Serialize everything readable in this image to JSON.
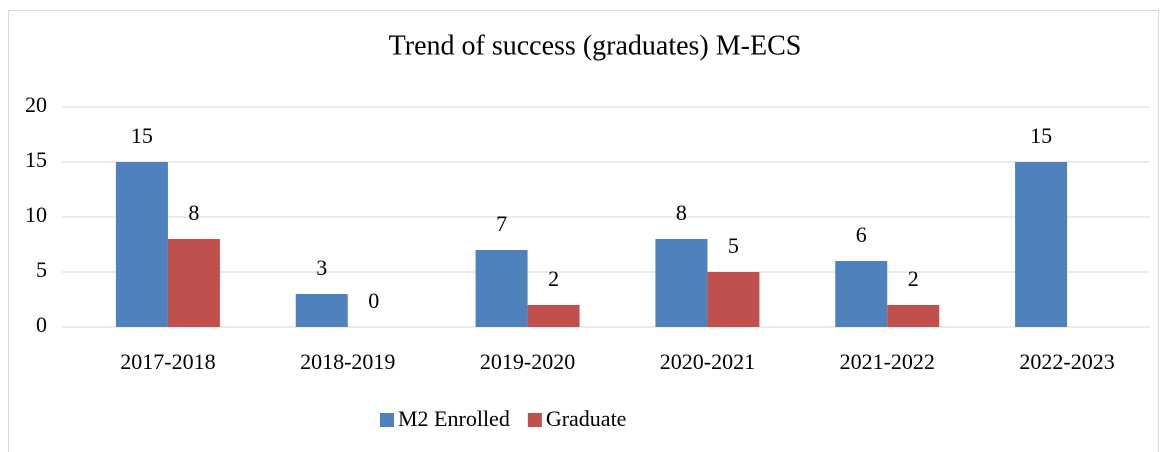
{
  "chart_data": {
    "type": "bar",
    "title": "Trend of success (graduates) M-ECS",
    "categories": [
      "2017-2018",
      "2018-2019",
      "2019-2020",
      "2020-2021",
      "2021-2022",
      "2022-2023"
    ],
    "series": [
      {
        "name": "M2 Enrolled",
        "color": "#4f81bd",
        "values": [
          15,
          3,
          7,
          8,
          6,
          15
        ]
      },
      {
        "name": "Graduate",
        "color": "#c0504d",
        "values": [
          8,
          0,
          2,
          5,
          2,
          null
        ]
      }
    ],
    "ylim": [
      0,
      20
    ],
    "yticks": [
      0,
      5,
      10,
      15,
      20
    ],
    "grid": true,
    "legend": "bottom"
  }
}
